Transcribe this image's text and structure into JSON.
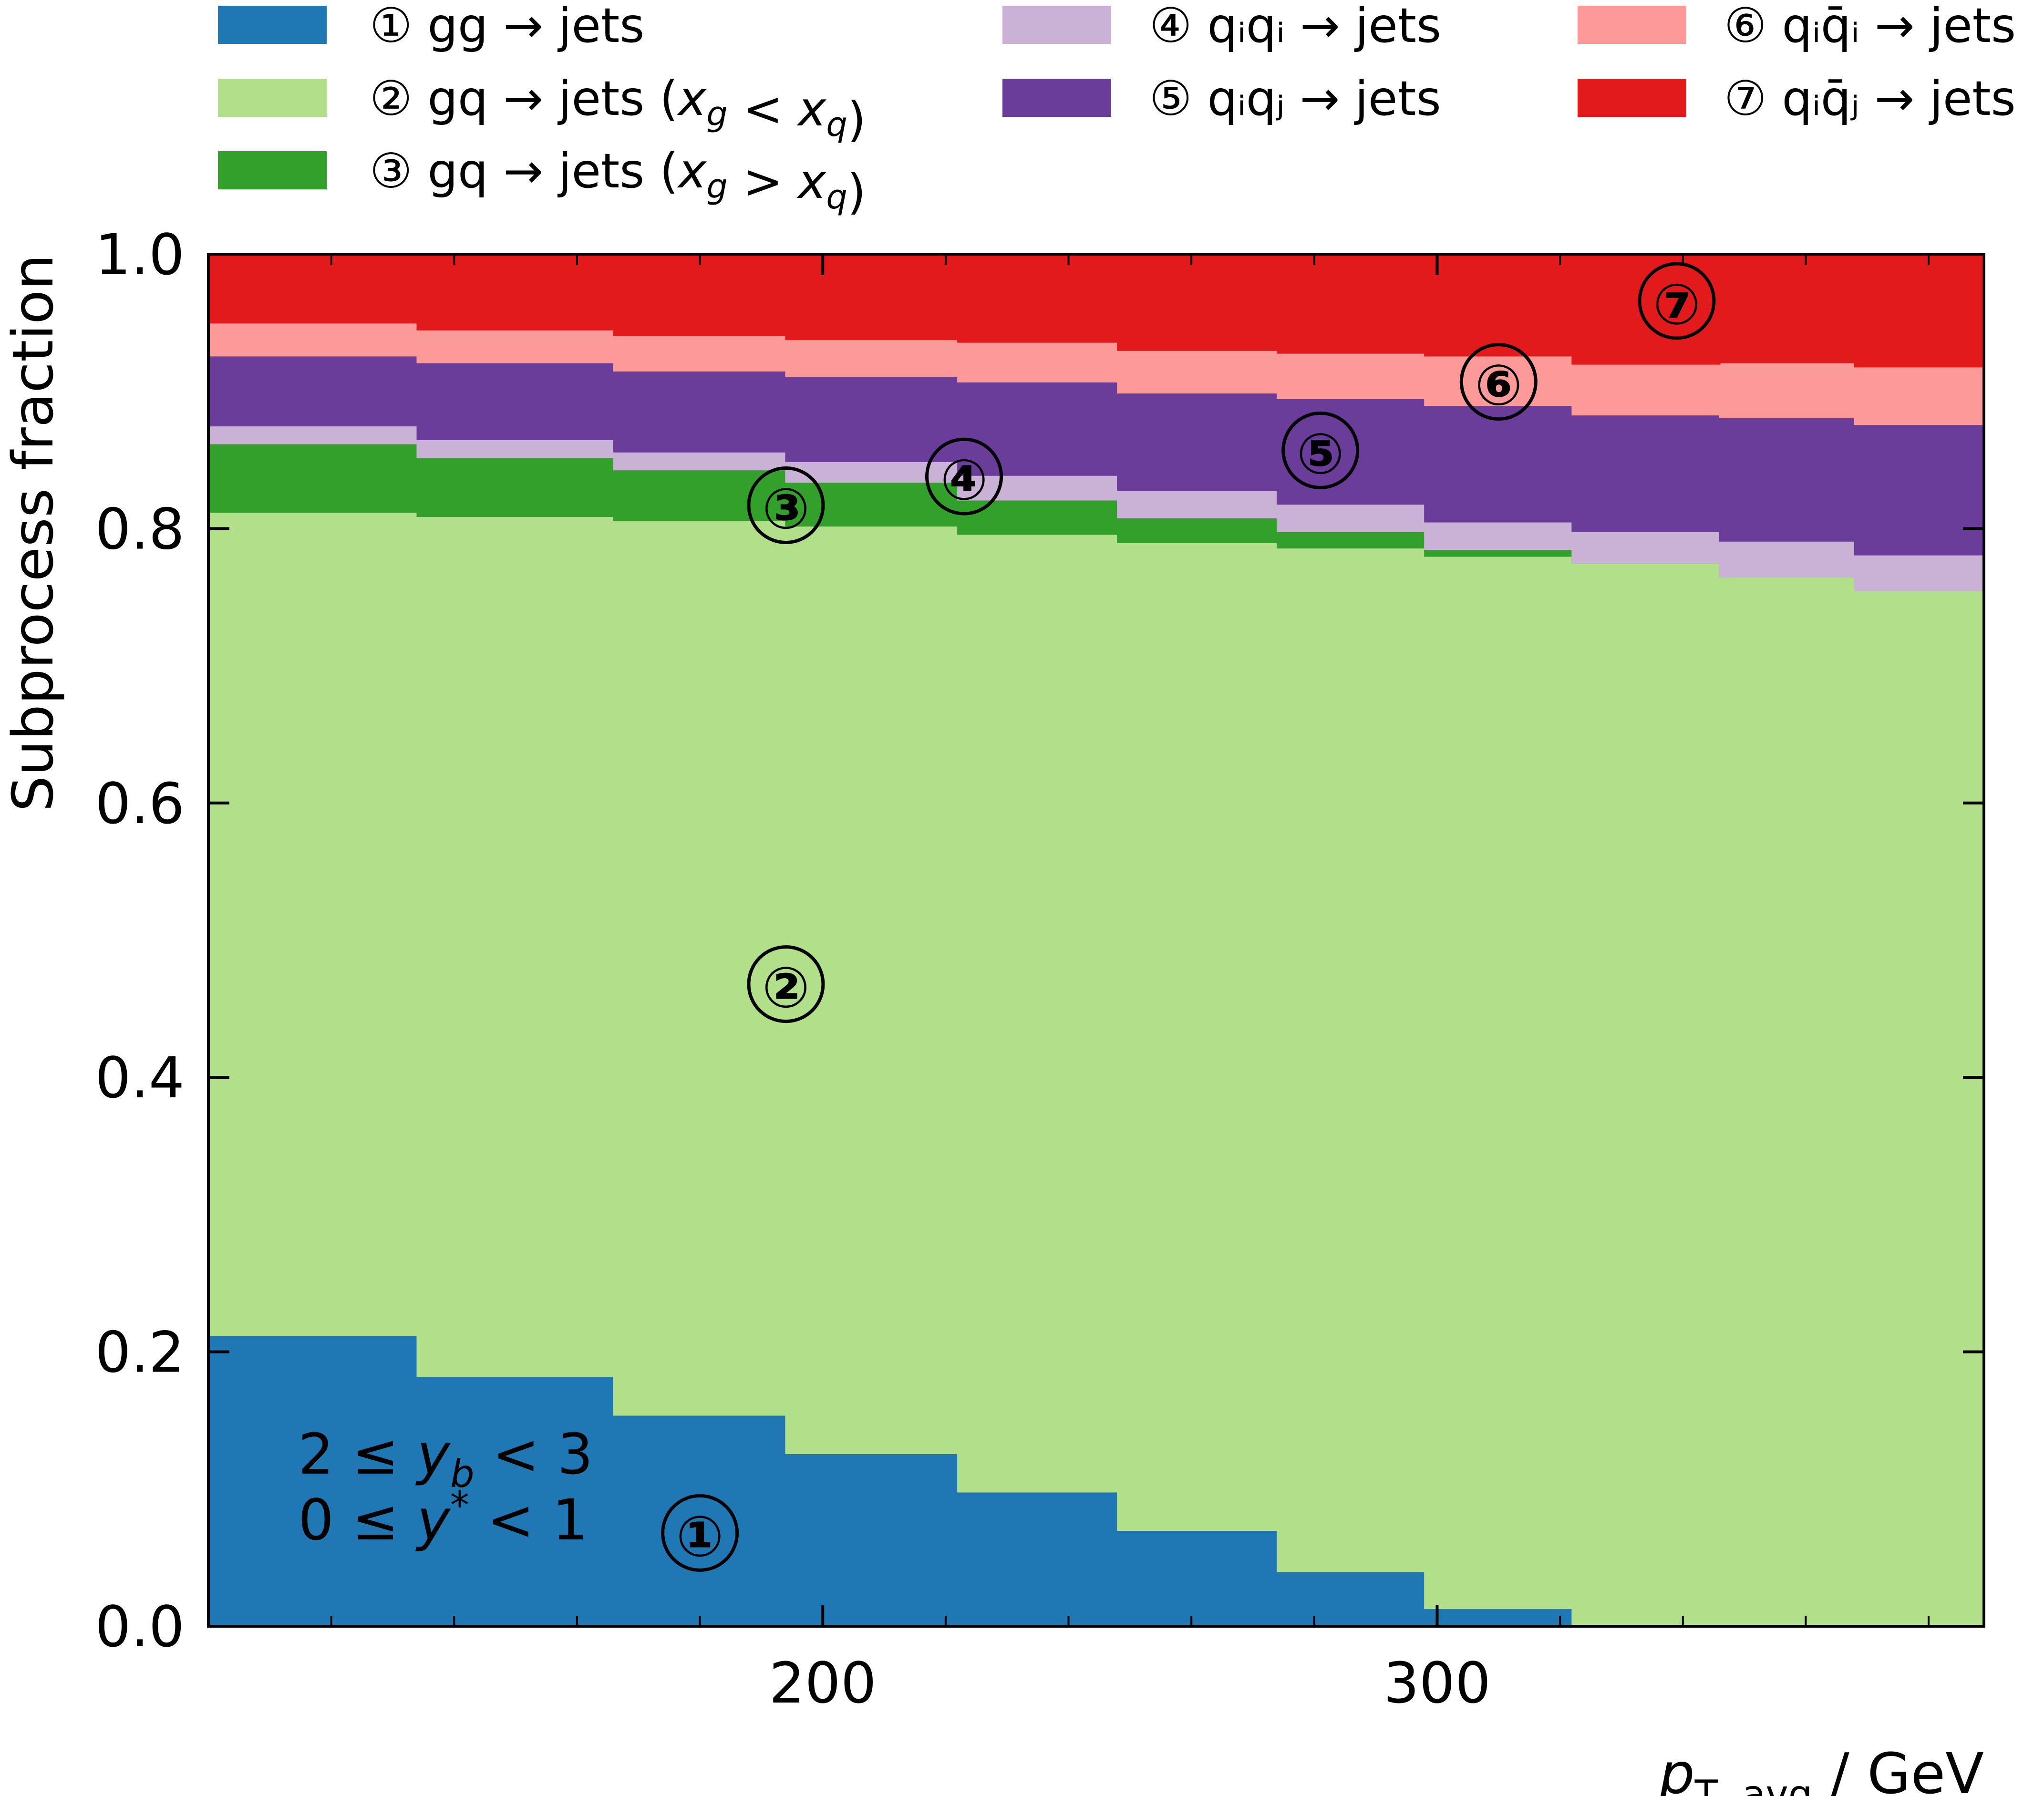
{
  "chart_data": {
    "type": "area",
    "xlabel_main": "p",
    "xlabel_sub": "T, avg",
    "xlabel_unit": " / GeV",
    "ylabel": "Subprocess fraction",
    "xlim": [
      100,
      389
    ],
    "ylim": [
      0.0,
      1.0
    ],
    "xticks": [
      200,
      300
    ],
    "yticks": [
      0.0,
      0.2,
      0.4,
      0.6,
      0.8,
      1.0
    ],
    "ytick_labels": [
      "0.0",
      "0.2",
      "0.4",
      "0.6",
      "0.8",
      "1.0"
    ],
    "grid": false,
    "legend_position": "top",
    "region_label_lines": [
      "2 ≤ y_b < 3",
      "0 ≤ y* < 1"
    ],
    "bin_edges": [
      100,
      134,
      166,
      194,
      222,
      248,
      274,
      298,
      322,
      346,
      368,
      389
    ],
    "series": [
      {
        "marker": "①",
        "label": "gg → jets",
        "color": "#1f77b4",
        "values": [
          0.212,
          0.182,
          0.154,
          0.126,
          0.098,
          0.07,
          0.04,
          0.013,
          0.0,
          0.0,
          0.0
        ]
      },
      {
        "marker": "②",
        "label": "gq → jets (x_g < x_q)",
        "color": "#b2df8a",
        "values": [
          0.6,
          0.627,
          0.652,
          0.676,
          0.698,
          0.72,
          0.746,
          0.767,
          0.775,
          0.765,
          0.755
        ]
      },
      {
        "marker": "③",
        "label": "gq → jets (x_g > x_q)",
        "color": "#33a02c",
        "values": [
          0.05,
          0.043,
          0.037,
          0.032,
          0.025,
          0.018,
          0.012,
          0.005,
          0.0,
          0.0,
          0.0
        ]
      },
      {
        "marker": "④",
        "label": "qᵢqᵢ → jets",
        "color": "#cab2d6",
        "values": [
          0.013,
          0.013,
          0.013,
          0.015,
          0.018,
          0.02,
          0.02,
          0.02,
          0.023,
          0.026,
          0.026
        ]
      },
      {
        "marker": "⑤",
        "label": "qᵢqⱼ → jets",
        "color": "#6a3d9a",
        "values": [
          0.051,
          0.056,
          0.059,
          0.062,
          0.068,
          0.071,
          0.077,
          0.085,
          0.085,
          0.09,
          0.095
        ]
      },
      {
        "marker": "⑥",
        "label": "qᵢq̄ᵢ → jets",
        "color": "#fb9a99",
        "values": [
          0.024,
          0.024,
          0.026,
          0.027,
          0.029,
          0.031,
          0.033,
          0.036,
          0.037,
          0.04,
          0.042
        ]
      },
      {
        "marker": "⑦",
        "label": "qᵢq̄ⱼ → jets",
        "color": "#e31a1c",
        "values": [
          0.05,
          0.055,
          0.059,
          0.062,
          0.064,
          0.07,
          0.072,
          0.074,
          0.08,
          0.079,
          0.082
        ]
      }
    ],
    "annotations": [
      {
        "text": "①",
        "x": 180,
        "y": 0.068
      },
      {
        "text": "②",
        "x": 194,
        "y": 0.468
      },
      {
        "text": "③",
        "x": 194,
        "y": 0.817
      },
      {
        "text": "④",
        "x": 223,
        "y": 0.838
      },
      {
        "text": "⑤",
        "x": 281,
        "y": 0.857
      },
      {
        "text": "⑥",
        "x": 310,
        "y": 0.907
      },
      {
        "text": "⑦",
        "x": 339,
        "y": 0.966
      }
    ]
  }
}
